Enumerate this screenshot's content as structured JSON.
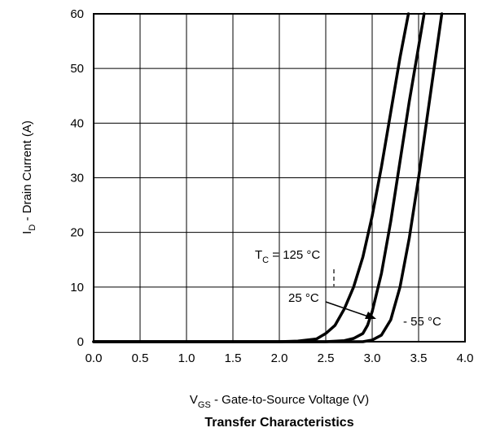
{
  "chart_data": {
    "type": "line",
    "title": "Transfer Characteristics",
    "xlabel": {
      "main": "V",
      "sub": "GS",
      "rest": " - Gate-to-Source Voltage (V)"
    },
    "ylabel": {
      "main": "I",
      "sub": "D",
      "rest": " - Drain Current (A)"
    },
    "xlim": [
      0.0,
      4.0
    ],
    "ylim": [
      0,
      60
    ],
    "x_ticks": [
      "0.0",
      "0.5",
      "1.0",
      "1.5",
      "2.0",
      "2.5",
      "3.0",
      "3.5",
      "4.0"
    ],
    "y_ticks": [
      "0",
      "10",
      "20",
      "30",
      "40",
      "50",
      "60"
    ],
    "grid": true,
    "series": [
      {
        "name": "T_C = 125 °C",
        "x": [
          0.0,
          2.0,
          2.2,
          2.4,
          2.5,
          2.6,
          2.7,
          2.8,
          2.9,
          3.0,
          3.1,
          3.2,
          3.3,
          3.39
        ],
        "y": [
          0,
          0,
          0.1,
          0.5,
          1.5,
          3.0,
          6.0,
          10.0,
          15.5,
          23.0,
          32.0,
          42.0,
          52.0,
          60.0
        ]
      },
      {
        "name": "25 °C",
        "x": [
          0.0,
          2.5,
          2.7,
          2.8,
          2.9,
          2.95,
          3.0,
          3.1,
          3.2,
          3.3,
          3.4,
          3.5,
          3.56
        ],
        "y": [
          0,
          0,
          0.2,
          0.6,
          1.5,
          3.0,
          5.5,
          12.5,
          22.0,
          33.0,
          44.0,
          54.0,
          60.0
        ]
      },
      {
        "name": "- 55 °C",
        "x": [
          0.0,
          2.9,
          3.0,
          3.1,
          3.2,
          3.3,
          3.4,
          3.5,
          3.6,
          3.7,
          3.75
        ],
        "y": [
          0,
          0,
          0.3,
          1.2,
          4.0,
          10.0,
          19.0,
          30.0,
          42.0,
          54.0,
          60.0
        ]
      }
    ],
    "annotations": [
      {
        "main": "T",
        "sub": "C",
        "rest": " = 125 °C"
      },
      {
        "main": "25 °C"
      },
      {
        "main": "- 55 °C"
      }
    ]
  }
}
